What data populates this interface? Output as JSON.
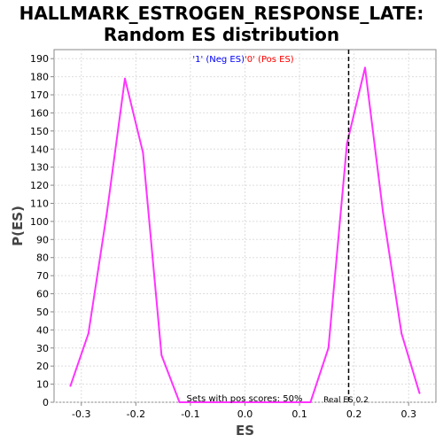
{
  "title_line1": "HALLMARK_ESTROGEN_RESPONSE_LATE:",
  "title_line2": "Random ES distribution",
  "chart_data": {
    "type": "line",
    "xlabel": "ES",
    "ylabel": "P(ES)",
    "xlim": [
      -0.35,
      0.35
    ],
    "ylim": [
      0,
      195
    ],
    "xticks": [
      -0.3,
      -0.2,
      -0.1,
      0.0,
      0.1,
      0.2,
      0.3
    ],
    "xtick_labels": [
      "-0.3",
      "-0.2",
      "-0.1",
      "0.0",
      "0.1",
      "0.2",
      "0.3"
    ],
    "yticks": [
      0,
      10,
      20,
      30,
      40,
      50,
      60,
      70,
      80,
      90,
      100,
      110,
      120,
      130,
      140,
      150,
      160,
      170,
      180,
      190
    ],
    "grid": true,
    "line_color": "#ff33ff",
    "series": [
      {
        "x": [
          -0.32,
          -0.287,
          -0.253,
          -0.22,
          -0.187,
          -0.153,
          -0.12,
          -0.087,
          -0.053,
          -0.02,
          0.013,
          0.047,
          0.08,
          0.12,
          0.153,
          0.187,
          0.22,
          0.253,
          0.287,
          0.32
        ],
        "y": [
          9,
          38,
          105,
          179,
          138,
          26,
          0,
          0,
          0,
          0,
          0,
          0,
          0,
          0,
          30,
          143,
          185,
          105,
          38,
          5
        ]
      }
    ],
    "legend": [
      {
        "text": "'1' (Neg ES)",
        "color": "#0000ff"
      },
      {
        "text": "'0' (Pos ES)",
        "color": "#ff0000"
      }
    ],
    "real_es": 0.19,
    "real_es_label": "Real ES 0.2",
    "pos_scores_label": "Sets with pos scores: 50%"
  }
}
